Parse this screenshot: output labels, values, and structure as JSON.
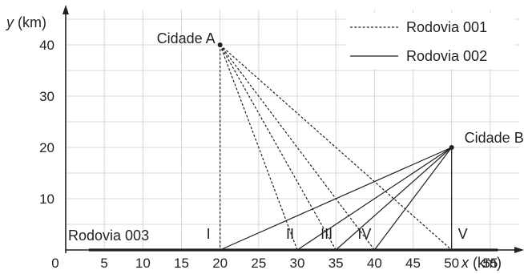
{
  "chart_data": {
    "type": "scatter",
    "title": "",
    "xlabel": {
      "var": "x",
      "unit": " (km)"
    },
    "ylabel": {
      "var": "y",
      "unit": " (km)"
    },
    "xlim": [
      0,
      60
    ],
    "ylim": [
      0,
      40
    ],
    "grid": true,
    "x_ticks": [
      0,
      5,
      10,
      15,
      20,
      25,
      30,
      35,
      40,
      45,
      50,
      55
    ],
    "y_ticks": [
      10,
      20,
      30,
      40
    ],
    "cities": [
      {
        "name": "Cidade A",
        "x": 20,
        "y": 40
      },
      {
        "name": "Cidade B",
        "x": 50,
        "y": 20
      }
    ],
    "road_points": [
      {
        "label": "I",
        "x": 20,
        "y": 0
      },
      {
        "label": "II",
        "x": 30,
        "y": 0
      },
      {
        "label": "III",
        "x": 35,
        "y": 0
      },
      {
        "label": "IV",
        "x": 40,
        "y": 0
      },
      {
        "label": "V",
        "x": 50,
        "y": 0
      }
    ],
    "legend": {
      "position": "top-right",
      "entries": [
        {
          "name": "Rodovia 001",
          "style": "dotted"
        },
        {
          "name": "Rodovia 002",
          "style": "solid"
        }
      ]
    },
    "road_003": {
      "label": "Rodovia 003",
      "x_start": 3,
      "x_end": 56,
      "y": 0
    }
  }
}
